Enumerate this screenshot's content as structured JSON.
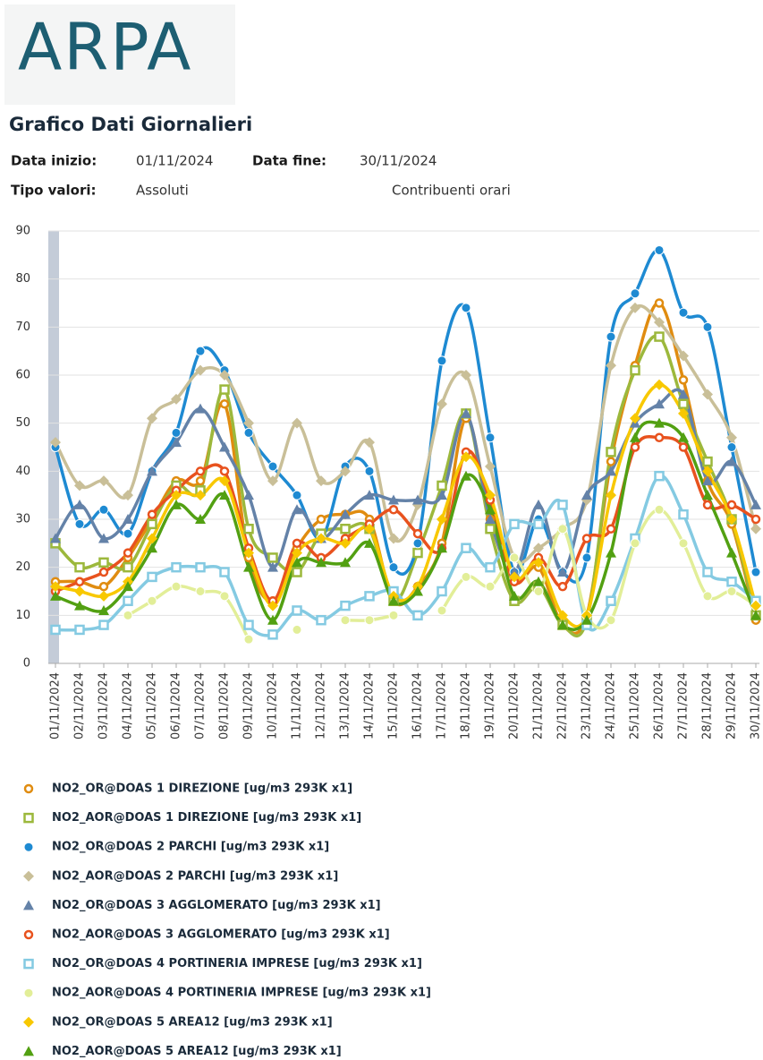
{
  "header": {
    "logo": "ARPA",
    "title": "Grafico Dati Giornalieri",
    "start_label": "Data inizio:",
    "start_value": "01/11/2024",
    "end_label": "Data fine:",
    "end_value": "30/11/2024",
    "type_label": "Tipo valori:",
    "type_value": "Assoluti",
    "contrib": "Contribuenti orari"
  },
  "chart_data": {
    "type": "line",
    "grid": true,
    "categories": [
      "01/11/2024",
      "02/11/2024",
      "03/11/2024",
      "04/11/2024",
      "05/11/2024",
      "06/11/2024",
      "07/11/2024",
      "08/11/2024",
      "09/11/2024",
      "10/11/2024",
      "11/11/2024",
      "12/11/2024",
      "13/11/2024",
      "14/11/2024",
      "15/11/2024",
      "16/11/2024",
      "17/11/2024",
      "18/11/2024",
      "19/11/2024",
      "20/11/2024",
      "21/11/2024",
      "22/11/2024",
      "23/11/2024",
      "24/11/2024",
      "25/11/2024",
      "26/11/2024",
      "27/11/2024",
      "28/11/2024",
      "29/11/2024",
      "30/11/2024"
    ],
    "ylim": [
      0,
      90
    ],
    "yticks": [
      0,
      10,
      20,
      30,
      40,
      50,
      60,
      70,
      80,
      90
    ],
    "series": [
      {
        "name": "NO2_OR@DOAS 1 DIREZIONE [ug/m3 293K x1]",
        "color": "#e08c10",
        "marker": "ring",
        "values": [
          17,
          17,
          16,
          22,
          30,
          38,
          38,
          54,
          22,
          13,
          24,
          30,
          31,
          30,
          13,
          16,
          25,
          51,
          30,
          17,
          20,
          8,
          10,
          42,
          62,
          75,
          59,
          38,
          29,
          9
        ]
      },
      {
        "name": "NO2_AOR@DOAS 1 DIREZIONE [ug/m3 293K x1]",
        "color": "#9cb83c",
        "marker": "square",
        "values": [
          25,
          20,
          21,
          20,
          29,
          37,
          36,
          57,
          28,
          22,
          19,
          27,
          28,
          28,
          13,
          23,
          37,
          52,
          28,
          13,
          16,
          8,
          9,
          44,
          61,
          68,
          54,
          42,
          30,
          10
        ]
      },
      {
        "name": "NO2_OR@DOAS 2 PARCHI [ug/m3 293K x1]",
        "color": "#1e8ad2",
        "marker": "dot",
        "values": [
          45,
          29,
          32,
          27,
          40,
          48,
          65,
          61,
          48,
          41,
          35,
          26,
          41,
          40,
          20,
          25,
          63,
          74,
          47,
          19,
          30,
          19,
          22,
          68,
          77,
          86,
          73,
          70,
          45,
          19
        ]
      },
      {
        "name": "NO2_AOR@DOAS 2 PARCHI [ug/m3 293K x1]",
        "color": "#c9bf98",
        "marker": "diamond",
        "values": [
          46,
          37,
          38,
          35,
          51,
          55,
          61,
          60,
          50,
          38,
          50,
          38,
          40,
          46,
          26,
          33,
          54,
          60,
          41,
          22,
          24,
          28,
          34,
          62,
          74,
          71,
          64,
          56,
          47,
          28
        ]
      },
      {
        "name": "NO2_OR@DOAS 3 AGGLOMERATO [ug/m3 293K x1]",
        "color": "#6482a8",
        "marker": "triangle",
        "values": [
          26,
          33,
          26,
          30,
          40,
          46,
          53,
          45,
          35,
          20,
          32,
          26,
          31,
          35,
          34,
          34,
          35,
          52,
          30,
          19,
          33,
          19,
          35,
          40,
          50,
          54,
          56,
          38,
          42,
          33
        ]
      },
      {
        "name": "NO2_AOR@DOAS 3 AGGLOMERATO [ug/m3 293K x1]",
        "color": "#e8521e",
        "marker": "ring",
        "values": [
          15,
          17,
          19,
          23,
          31,
          36,
          40,
          40,
          24,
          13,
          25,
          22,
          26,
          29,
          32,
          27,
          24,
          44,
          34,
          17,
          22,
          16,
          26,
          28,
          45,
          47,
          45,
          33,
          33,
          30
        ]
      },
      {
        "name": "NO2_OR@DOAS 4 PORTINERIA IMPRESE [ug/m3 293K x1]",
        "color": "#84cae2",
        "marker": "square",
        "values": [
          7,
          7,
          8,
          13,
          18,
          20,
          20,
          19,
          8,
          6,
          11,
          9,
          12,
          14,
          15,
          10,
          15,
          24,
          20,
          29,
          29,
          33,
          8,
          13,
          26,
          39,
          31,
          19,
          17,
          13
        ]
      },
      {
        "name": "NO2_AOR@DOAS 4 PORTINERIA IMPRESE [ug/m3 293K x1]",
        "color": "#e2ee98",
        "marker": "dot",
        "values": [
          null,
          null,
          null,
          10,
          13,
          16,
          15,
          14,
          5,
          null,
          7,
          null,
          9,
          9,
          10,
          null,
          11,
          18,
          16,
          22,
          15,
          28,
          10,
          9,
          25,
          32,
          25,
          14,
          15,
          12
        ]
      },
      {
        "name": "NO2_OR@DOAS 5 AREA12 [ug/m3 293K x1]",
        "color": "#f8c800",
        "marker": "diamond",
        "values": [
          16,
          15,
          14,
          17,
          26,
          35,
          35,
          38,
          23,
          12,
          23,
          26,
          25,
          28,
          14,
          16,
          30,
          43,
          35,
          18,
          21,
          10,
          10,
          35,
          51,
          58,
          52,
          40,
          30,
          12
        ]
      },
      {
        "name": "NO2_AOR@DOAS 5 AREA12 [ug/m3 293K x1]",
        "color": "#52a012",
        "marker": "triangle",
        "values": [
          14,
          12,
          11,
          16,
          24,
          33,
          30,
          35,
          20,
          9,
          21,
          21,
          21,
          25,
          13,
          15,
          24,
          39,
          32,
          14,
          17,
          8,
          9,
          23,
          47,
          50,
          47,
          35,
          23,
          10
        ]
      }
    ]
  }
}
